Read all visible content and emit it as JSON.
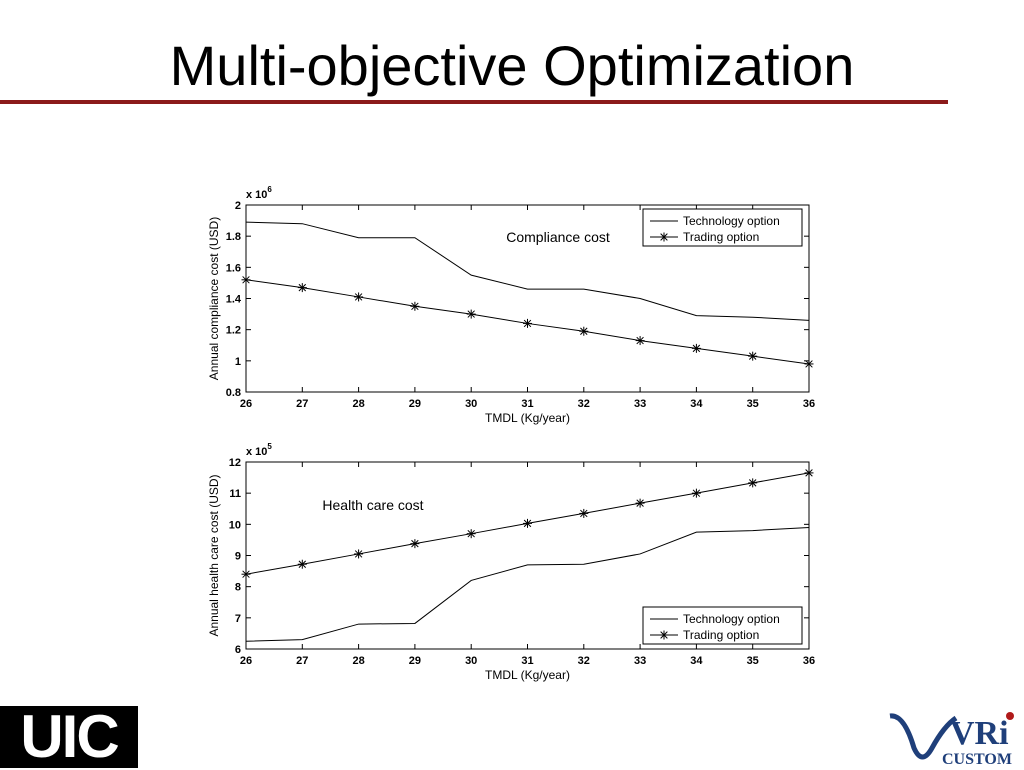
{
  "slide": {
    "title": "Multi-objective Optimization"
  },
  "logos": {
    "left": "UIC",
    "right_main": "VRi",
    "right_sub": "CUSTOM"
  },
  "colors": {
    "title_rule": "#8b1a1a",
    "logo_blue": "#1f3f7a",
    "logo_red": "#b01a1a"
  },
  "chart_data": [
    {
      "type": "line",
      "annotation": "Compliance cost",
      "xlabel": "TMDL (Kg/year)",
      "ylabel": "Annual compliance cost (USD)",
      "yscale_label": "x 10",
      "yscale_exp": "6",
      "xlim": [
        26,
        36
      ],
      "ylim": [
        0.8,
        2
      ],
      "xticks": [
        26,
        27,
        28,
        29,
        30,
        31,
        32,
        33,
        34,
        35,
        36
      ],
      "yticks": [
        0.8,
        1,
        1.2,
        1.4,
        1.6,
        1.8,
        2
      ],
      "ytick_labels": [
        "0.8",
        "1",
        "1.2",
        "1.4",
        "1.6",
        "1.8",
        "2"
      ],
      "legend_position": "top-right",
      "x": [
        26,
        27,
        28,
        29,
        30,
        31,
        32,
        33,
        34,
        35,
        36
      ],
      "series": [
        {
          "name": "Technology option",
          "marker": "none",
          "values": [
            1.89,
            1.88,
            1.79,
            1.79,
            1.55,
            1.46,
            1.46,
            1.4,
            1.29,
            1.28,
            1.26
          ]
        },
        {
          "name": "Trading option",
          "marker": "star",
          "values": [
            1.52,
            1.47,
            1.41,
            1.35,
            1.3,
            1.24,
            1.19,
            1.13,
            1.08,
            1.03,
            0.98
          ]
        }
      ]
    },
    {
      "type": "line",
      "annotation": "Health care cost",
      "xlabel": "TMDL (Kg/year)",
      "ylabel": "Annual health care cost (USD)",
      "yscale_label": "x 10",
      "yscale_exp": "5",
      "xlim": [
        26,
        36
      ],
      "ylim": [
        6,
        12
      ],
      "xticks": [
        26,
        27,
        28,
        29,
        30,
        31,
        32,
        33,
        34,
        35,
        36
      ],
      "yticks": [
        6,
        7,
        8,
        9,
        10,
        11,
        12
      ],
      "ytick_labels": [
        "6",
        "7",
        "8",
        "9",
        "10",
        "11",
        "12"
      ],
      "legend_position": "bottom-right",
      "x": [
        26,
        27,
        28,
        29,
        30,
        31,
        32,
        33,
        34,
        35,
        36
      ],
      "series": [
        {
          "name": "Technology option",
          "marker": "none",
          "values": [
            6.25,
            6.3,
            6.8,
            6.82,
            8.2,
            8.7,
            8.72,
            9.05,
            9.75,
            9.8,
            9.9
          ]
        },
        {
          "name": "Trading option",
          "marker": "star",
          "values": [
            8.4,
            8.72,
            9.05,
            9.38,
            9.7,
            10.03,
            10.35,
            10.68,
            11.0,
            11.33,
            11.65
          ]
        }
      ]
    }
  ]
}
